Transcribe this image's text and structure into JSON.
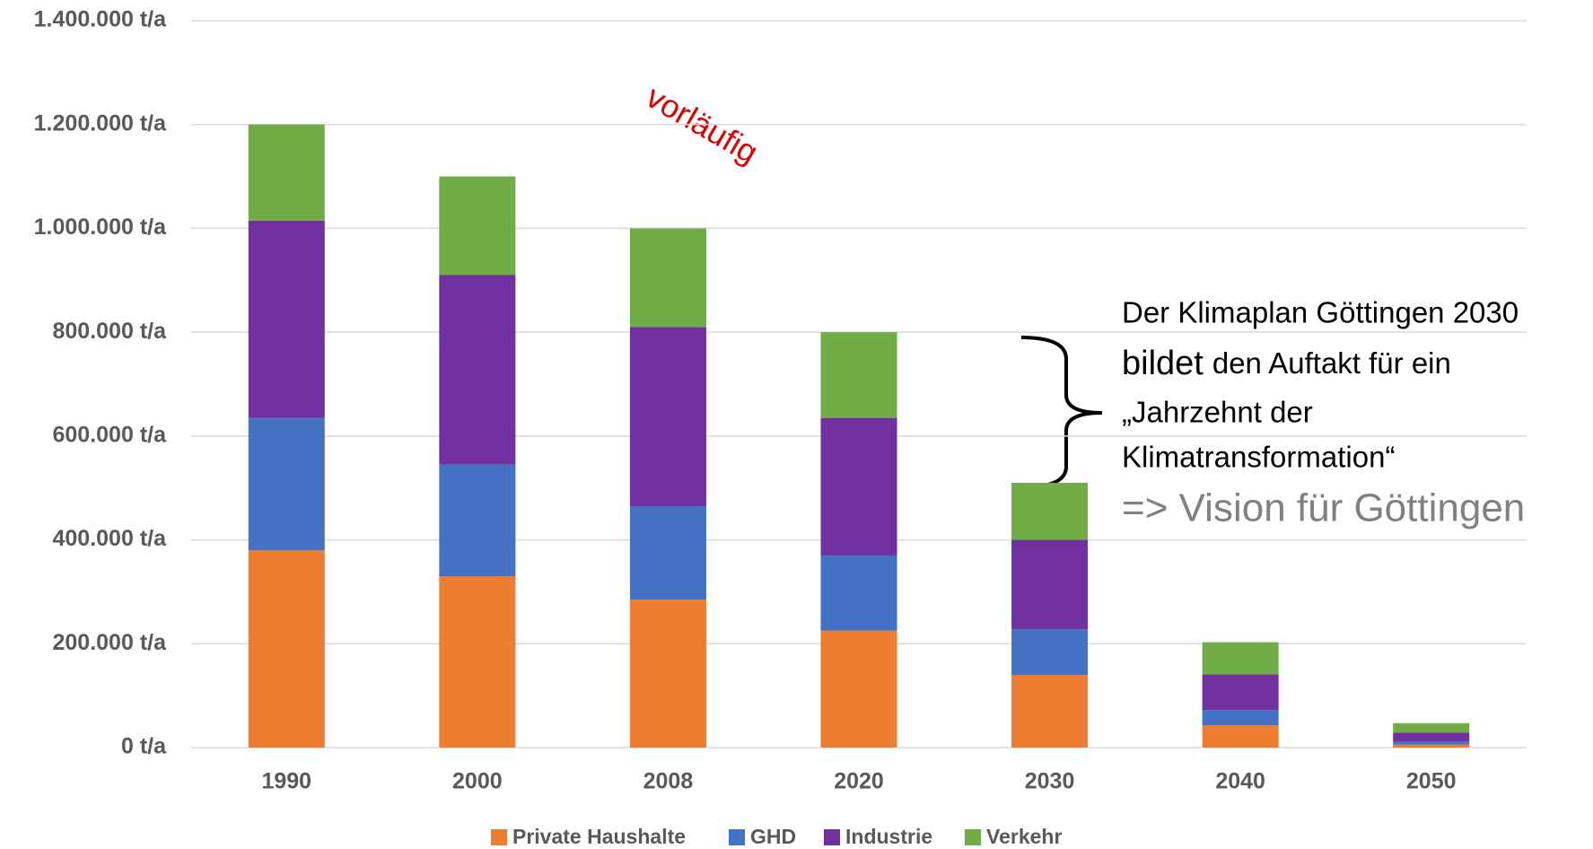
{
  "chart_data": {
    "type": "stacked_bar",
    "categories": [
      "1990",
      "2000",
      "2008",
      "2020",
      "2030",
      "2040",
      "2050"
    ],
    "series": [
      {
        "name": "Private Haushalte",
        "color": "#ed7d31",
        "values": [
          380000,
          330000,
          285000,
          225000,
          140000,
          43000,
          6000
        ]
      },
      {
        "name": "GHD",
        "color": "#4472c4",
        "values": [
          255000,
          215000,
          180000,
          145000,
          88000,
          29000,
          6000
        ]
      },
      {
        "name": "Industrie",
        "color": "#7030a0",
        "values": [
          380000,
          365000,
          345000,
          265000,
          172000,
          69000,
          17000
        ]
      },
      {
        "name": "Verkehr",
        "color": "#70ad47",
        "values": [
          185000,
          190000,
          190000,
          165000,
          110000,
          62000,
          18000
        ]
      }
    ],
    "ylim": [
      0,
      1400000
    ],
    "yticks": [
      {
        "value": 0,
        "label": "0 t/a"
      },
      {
        "value": 200000,
        "label": "200.000 t/a"
      },
      {
        "value": 400000,
        "label": "400.000 t/a"
      },
      {
        "value": 600000,
        "label": "600.000 t/a"
      },
      {
        "value": 800000,
        "label": "800.000 t/a"
      },
      {
        "value": 1000000,
        "label": "1.000.000 t/a"
      },
      {
        "value": 1200000,
        "label": "1.200.000 t/a"
      },
      {
        "value": 1400000,
        "label": "1.400.000 t/a"
      }
    ],
    "grid": true,
    "legend": "bottom",
    "note": "vorläufig",
    "annotation": {
      "line1": "Der Klimaplan Göttingen 2030",
      "line2a": "bildet",
      "line2b": "den Auftakt für ein",
      "line3": "„Jahrzehnt der",
      "line4": "Klimatransformation“",
      "vision": "=> Vision für Göttingen"
    }
  }
}
